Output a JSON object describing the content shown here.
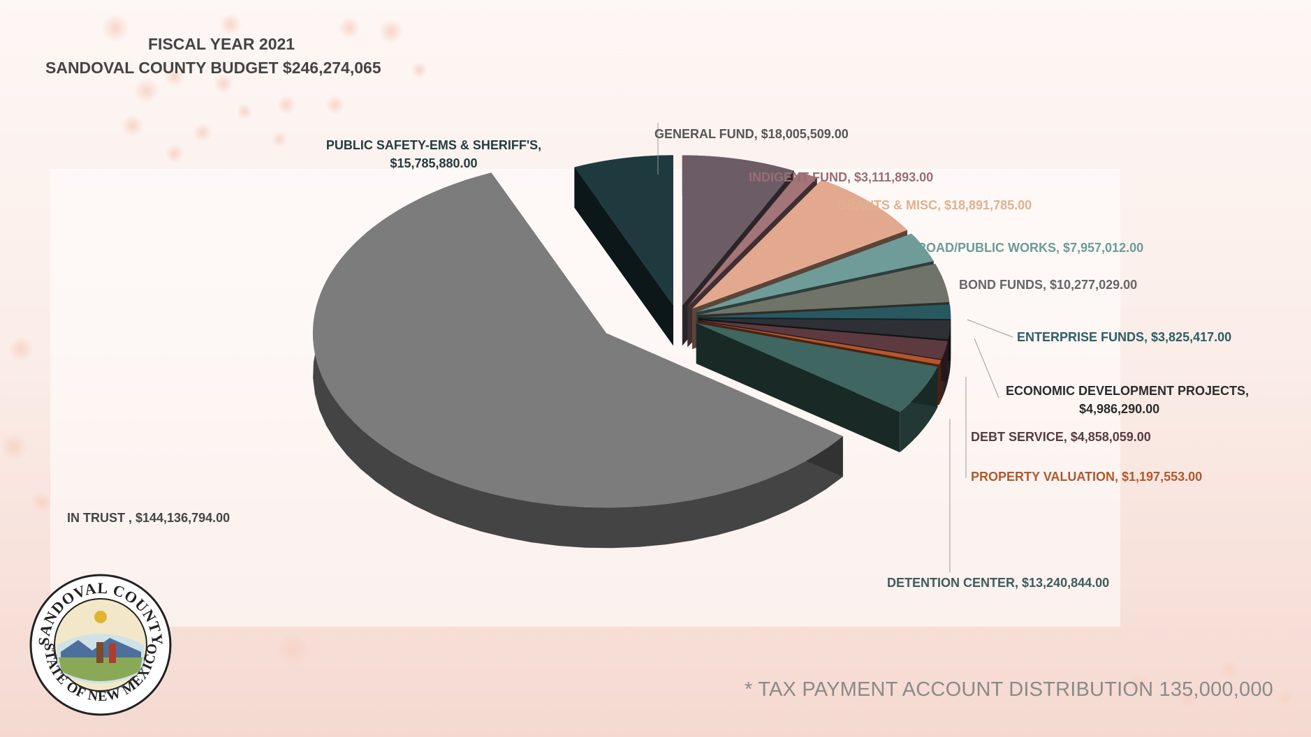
{
  "title_line1": "FISCAL YEAR 2021",
  "title_line2": "SANDOVAL COUNTY BUDGET $246,274,065",
  "footnote": "*  TAX PAYMENT ACCOUNT DISTRIBUTION  135,000,000",
  "seal": {
    "text_top": "SANDOVAL COUNTY",
    "text_bottom": "STATE OF NEW MEXICO"
  },
  "chart_data": {
    "type": "pie",
    "title": "SANDOVAL COUNTY BUDGET $246,274,065",
    "total": 246274065,
    "series": [
      {
        "label": "GENERAL FUND, $18,005,509.00",
        "value": 18005509.0,
        "color": "#6c5c66"
      },
      {
        "label": "INDIGENT FUND, $3,111,893.00",
        "value": 3111893.0,
        "color": "#a37478"
      },
      {
        "label": "GRANTS & MISC, $18,891,785.00",
        "value": 18891785.0,
        "color": "#e3a98f"
      },
      {
        "label": "ROAD/PUBLIC WORKS, $7,957,012.00",
        "value": 7957012.0,
        "color": "#6f9c98"
      },
      {
        "label": "BOND FUNDS, $10,277,029.00",
        "value": 10277029.0,
        "color": "#707468"
      },
      {
        "label": "ENTERPRISE FUNDS, $3,825,417.00",
        "value": 3825417.0,
        "color": "#2a5861"
      },
      {
        "label": "ECONOMIC DEVELOPMENT PROJECTS, $4,986,290.00",
        "value": 4986290.0,
        "color": "#2f3035"
      },
      {
        "label": "DEBT SERVICE, $4,858,059.00",
        "value": 4858059.0,
        "color": "#5c3a40"
      },
      {
        "label": "PROPERTY VALUATION, $1,197,553.00",
        "value": 1197553.0,
        "color": "#b5562c"
      },
      {
        "label": "DETENTION CENTER, $13,240,844.00",
        "value": 13240844.0,
        "color": "#3f6660"
      },
      {
        "label": "IN TRUST , $144,136,794.00",
        "value": 144136794.0,
        "color": "#7c7c7c"
      },
      {
        "label": "PUBLIC SAFETY-EMS & SHERIFF'S, $15,785,880.00",
        "value": 15785880.0,
        "color": "#1f3a3f"
      }
    ],
    "label_colors": {
      "GENERAL FUND": "#555555",
      "INDIGENT FUND": "#9b6d72",
      "GRANTS & MISC": "#e0b08f",
      "ROAD/PUBLIC WORKS": "#6a9c98",
      "BOND FUNDS": "#666666",
      "ENTERPRISE FUNDS": "#2d5d66",
      "ECONOMIC DEVELOPMENT PROJECTS": "#2b2b2b",
      "DEBT SERVICE": "#5b3a40",
      "PROPERTY VALUATION": "#b0592d",
      "DETENTION CENTER": "#3d5c5a",
      "IN TRUST": "#444444",
      "PUBLIC SAFETY-EMS & SHERIFF'S": "#233d40"
    }
  }
}
